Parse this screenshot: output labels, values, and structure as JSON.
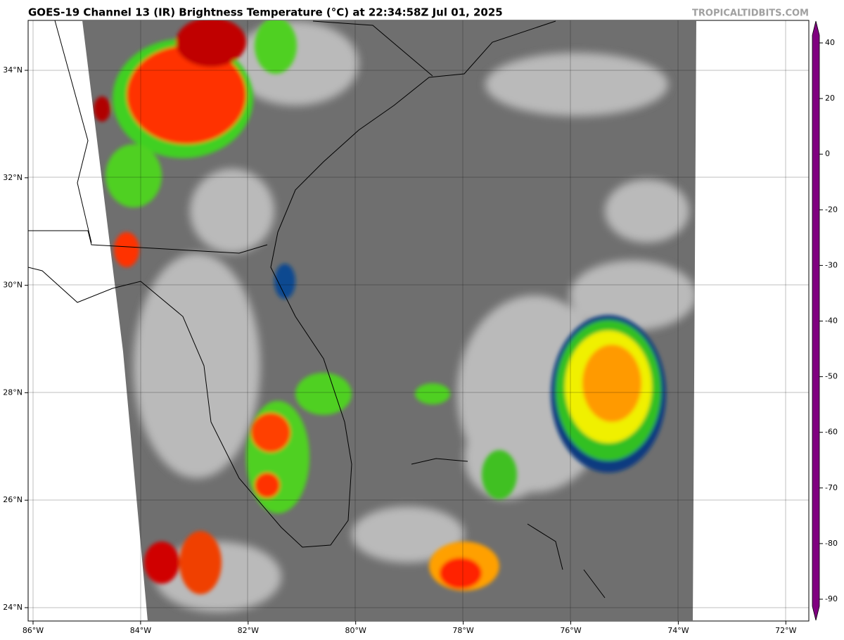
{
  "title": "GOES-19 Channel 13 (IR) Brightness Temperature (°C) at 22:34:58Z Jul 01, 2025",
  "watermark": "TROPICALTIDBITS.COM",
  "map": {
    "lon_labels": [
      "86°W",
      "84°W",
      "82°W",
      "80°W",
      "78°W",
      "76°W",
      "74°W",
      "72°W"
    ],
    "lat_labels": [
      "34°N",
      "32°N",
      "30°N",
      "28°N",
      "26°N",
      "24°N"
    ]
  },
  "colorbar": {
    "ticks": [
      40,
      20,
      0,
      -20,
      -30,
      -40,
      -50,
      -60,
      -70,
      -80,
      -90
    ]
  }
}
